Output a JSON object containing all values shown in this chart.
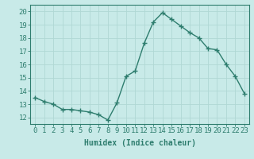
{
  "x": [
    0,
    1,
    2,
    3,
    4,
    5,
    6,
    7,
    8,
    9,
    10,
    11,
    12,
    13,
    14,
    15,
    16,
    17,
    18,
    19,
    20,
    21,
    22,
    23
  ],
  "y": [
    13.5,
    13.2,
    13.0,
    12.6,
    12.6,
    12.5,
    12.4,
    12.2,
    11.8,
    13.1,
    15.1,
    15.5,
    17.6,
    19.2,
    19.9,
    19.4,
    18.9,
    18.4,
    18.0,
    17.2,
    17.1,
    16.0,
    15.1,
    13.8
  ],
  "line_color": "#2e7d6e",
  "marker": "+",
  "marker_size": 4,
  "bg_color": "#c8eae8",
  "grid_color": "#b0d8d4",
  "xlabel": "Humidex (Indice chaleur)",
  "xlim": [
    -0.5,
    23.5
  ],
  "ylim": [
    11.5,
    20.5
  ],
  "xtick_labels": [
    "0",
    "1",
    "2",
    "3",
    "4",
    "5",
    "6",
    "7",
    "8",
    "9",
    "10",
    "11",
    "12",
    "13",
    "14",
    "15",
    "16",
    "17",
    "18",
    "19",
    "20",
    "21",
    "22",
    "23"
  ],
  "ytick_values": [
    12,
    13,
    14,
    15,
    16,
    17,
    18,
    19,
    20
  ],
  "xlabel_fontsize": 7,
  "tick_fontsize": 6.5,
  "line_width": 1.0,
  "marker_color": "#2e7d6e"
}
